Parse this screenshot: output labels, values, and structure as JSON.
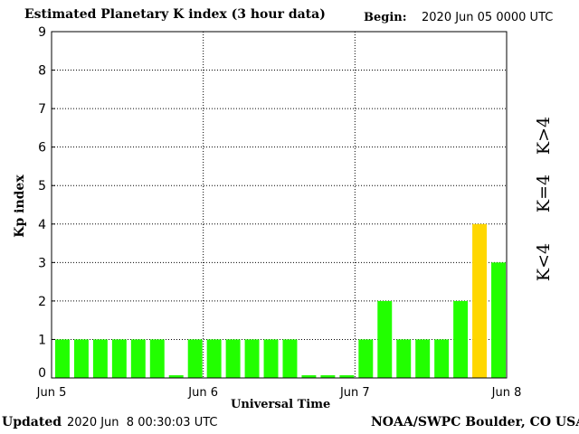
{
  "header": {
    "title": "Estimated Planetary K index (3 hour data)",
    "begin_label": "Begin:",
    "begin_value": "2020 Jun 05 0000 UTC"
  },
  "footer": {
    "updated_label": "Updated",
    "updated_value": "2020 Jun  8 00:30:03 UTC",
    "source": "NOAA/SWPC Boulder, CO USA"
  },
  "legend": {
    "high": "K>4",
    "eq": "K=4",
    "low": "K<4"
  },
  "colors": {
    "low": "#22ff00",
    "eq": "#ffd700",
    "high": "#ff3300",
    "grid": "#000000"
  },
  "chart_data": {
    "type": "bar",
    "xlabel": "Universal Time",
    "ylabel": "Kp index",
    "ylim": [
      0,
      9
    ],
    "yticks": [
      0,
      1,
      2,
      3,
      4,
      5,
      6,
      7,
      8,
      9
    ],
    "xticks": [
      "Jun 5",
      "Jun 6",
      "Jun 7",
      "Jun 8"
    ],
    "grid": true,
    "values": [
      1,
      1,
      1,
      1,
      1,
      1,
      0.07,
      1,
      1,
      1,
      1,
      1,
      1,
      0.07,
      0.07,
      0.07,
      1,
      2,
      1,
      1,
      1,
      2,
      4,
      3
    ]
  }
}
